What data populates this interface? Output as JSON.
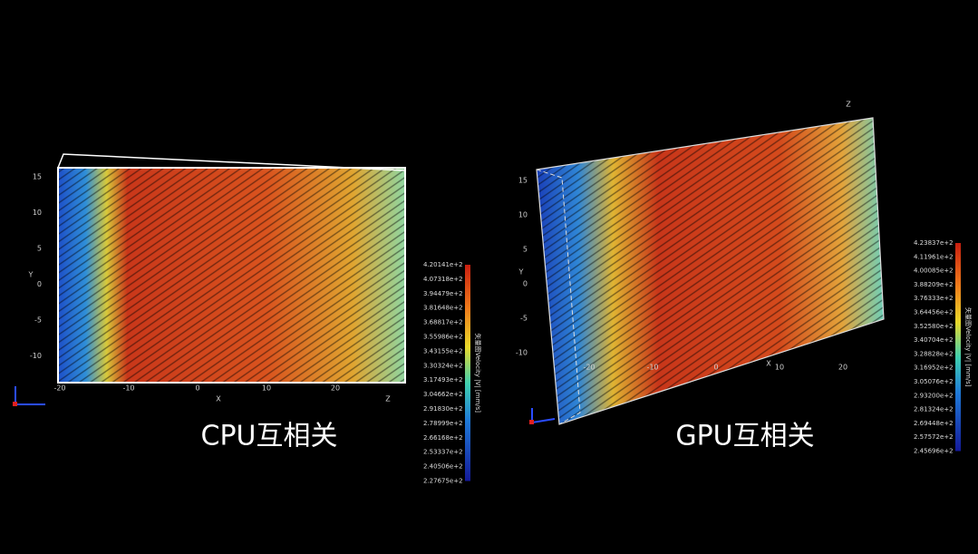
{
  "panels": [
    {
      "caption": "CPU互相关",
      "colorbar": {
        "title": "矢量图Velocity |V| [mm/s]",
        "labels": [
          "4.20141e+2",
          "4.07318e+2",
          "3.94479e+2",
          "3.81648e+2",
          "3.68817e+2",
          "3.55986e+2",
          "3.43155e+2",
          "3.30324e+2",
          "3.17493e+2",
          "3.04662e+2",
          "2.91830e+2",
          "2.78999e+2",
          "2.66168e+2",
          "2.53337e+2",
          "2.40506e+2",
          "2.27675e+2"
        ]
      },
      "axes": {
        "y_label": "Y",
        "y_ticks": [
          15,
          10,
          5,
          0,
          -5,
          -10
        ],
        "x_label": "X",
        "x_ticks": [
          -20,
          -10,
          0,
          10,
          20
        ],
        "z_label": "Z"
      }
    },
    {
      "caption": "GPU互相关",
      "colorbar": {
        "title": "矢量图Velocity |V| [mm/s]",
        "labels": [
          "4.23837e+2",
          "4.11961e+2",
          "4.00085e+2",
          "3.88209e+2",
          "3.76333e+2",
          "3.64456e+2",
          "3.52580e+2",
          "3.40704e+2",
          "3.28828e+2",
          "3.16952e+2",
          "3.05076e+2",
          "2.93200e+2",
          "2.81324e+2",
          "2.69448e+2",
          "2.57572e+2",
          "2.45696e+2"
        ]
      },
      "axes": {
        "y_label": "Y",
        "y_ticks": [
          15,
          10,
          5,
          0,
          -5,
          -10
        ],
        "x_label": "X",
        "x_ticks": [
          -20,
          -10,
          0,
          10,
          20
        ],
        "z_label": "Z"
      }
    }
  ]
}
